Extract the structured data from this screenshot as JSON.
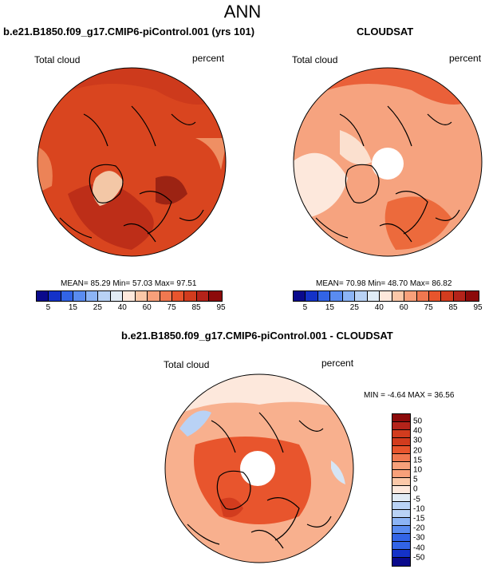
{
  "figure_title": "ANN",
  "panels": [
    {
      "title": "b.e21.B1850.f09_g17.CMIP6-piControl.001 (yrs 101)",
      "variable": "Total cloud",
      "units": "percent",
      "stats": "MEAN= 85.29  Min= 57.03  Max= 97.51",
      "colorbar_ticks": [
        "5",
        "15",
        "25",
        "40",
        "60",
        "75",
        "85",
        "95"
      ]
    },
    {
      "title": "CLOUDSAT",
      "variable": "Total cloud",
      "units": "percent",
      "stats": "MEAN= 70.98  Min= 48.70  Max= 86.82",
      "colorbar_ticks": [
        "5",
        "15",
        "25",
        "40",
        "60",
        "75",
        "85",
        "95"
      ]
    },
    {
      "title": "b.e21.B1850.f09_g17.CMIP6-piControl.001 - CLOUDSAT",
      "variable": "Total cloud",
      "units": "percent",
      "stats": "MIN = -4.64 MAX = 36.56",
      "colorbar_ticks": [
        "50",
        "40",
        "30",
        "20",
        "15",
        "10",
        "5",
        "0",
        "-5",
        "-10",
        "-15",
        "-20",
        "-30",
        "-40",
        "-50"
      ]
    }
  ],
  "colors": {
    "abs_scale": [
      "#0a0a8c",
      "#1432c8",
      "#3264e6",
      "#5a8cf0",
      "#8cb4f5",
      "#b9d2f5",
      "#e1ebf5",
      "#fde8dc",
      "#fbc8a8",
      "#f8a07a",
      "#f07850",
      "#e8552d",
      "#d23c1e",
      "#b4231a",
      "#8c0a0a"
    ],
    "diff_scale": [
      "#8c0a0a",
      "#b4231a",
      "#d23c1e",
      "#e8552d",
      "#f07850",
      "#f8a07a",
      "#fbc8a8",
      "#fde8dc",
      "#e1ebf5",
      "#b9d2f5",
      "#8cb4f5",
      "#5a8cf0",
      "#3264e6",
      "#1432c8",
      "#0a0a8c"
    ],
    "panel1_base": "#d9451f",
    "panel2_base": "#f6a37f",
    "panel3_base": "#f8b08e"
  }
}
